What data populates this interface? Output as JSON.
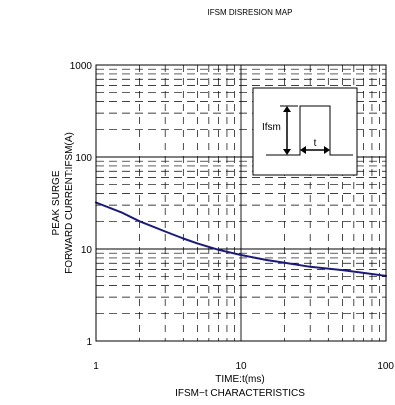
{
  "chart_data": {
    "type": "line",
    "title": "IFSM DISRESION MAP",
    "subtitle": "IFSM−t CHARACTERISTICS",
    "xlabel": "TIME:t(ms)",
    "ylabel_line1": "PEAK SURGE",
    "ylabel_line2": "FORWARD CURRENT:IFSM(A)",
    "x_scale": "log",
    "y_scale": "log",
    "xlim": [
      1,
      100
    ],
    "ylim": [
      1,
      1000
    ],
    "x_ticks": [
      "1",
      "10",
      "100"
    ],
    "y_ticks": [
      "1",
      "10",
      "100",
      "1000"
    ],
    "grid": true,
    "series": [
      {
        "color": "#1a1a7a",
        "x": [
          1,
          1.5,
          2,
          3,
          4,
          5,
          7,
          10,
          15,
          20,
          30,
          50,
          70,
          100
        ],
        "y": [
          32,
          25,
          20,
          15.5,
          13,
          11.5,
          9.8,
          8.6,
          7.6,
          7.1,
          6.4,
          5.9,
          5.5,
          5.1
        ]
      }
    ],
    "inset": {
      "label_ifsm": "Ifsm",
      "label_t": "t"
    }
  }
}
